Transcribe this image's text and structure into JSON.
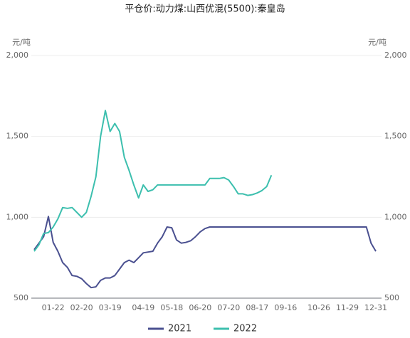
{
  "chart_data": {
    "type": "line",
    "title": "平仓价:动力煤:山西优混(5500):秦皇岛",
    "y_label": "元/吨",
    "y2_label": "元/吨",
    "ylim": [
      500,
      2000
    ],
    "yticks": [
      500,
      {
        "value": 1000,
        "label": "1,000"
      },
      {
        "value": 1500,
        "label": "1,500"
      },
      {
        "value": 2000,
        "label": "2,000"
      }
    ],
    "y2lim": [
      500,
      2000
    ],
    "y2ticks": [
      500,
      {
        "value": 1000,
        "label": "1,000"
      },
      {
        "value": 1500,
        "label": "1,500"
      },
      {
        "value": 2000,
        "label": "2,000"
      }
    ],
    "grid": true,
    "legend": "bottom",
    "categories": [
      null,
      null,
      null,
      null,
      "01-22",
      null,
      null,
      null,
      null,
      null,
      "02-20",
      null,
      null,
      null,
      null,
      null,
      "03-19",
      null,
      null,
      null,
      null,
      null,
      null,
      "04-19",
      null,
      null,
      null,
      null,
      null,
      "05-18",
      null,
      null,
      null,
      null,
      null,
      "06-20",
      null,
      null,
      null,
      null,
      null,
      "07-20",
      null,
      null,
      null,
      null,
      null,
      "08-17",
      null,
      null,
      null,
      null,
      null,
      "09-16",
      null,
      null,
      null,
      null,
      null,
      null,
      "10-26",
      null,
      null,
      null,
      null,
      null,
      "11-29",
      null,
      null,
      null,
      null,
      null,
      "12-31"
    ],
    "series": [
      {
        "name": "2021",
        "color": "#4a5090",
        "values": [
          800,
          840,
          880,
          1005,
          845,
          790,
          720,
          690,
          640,
          635,
          620,
          590,
          565,
          570,
          610,
          625,
          625,
          640,
          680,
          720,
          735,
          720,
          750,
          780,
          785,
          790,
          840,
          880,
          940,
          935,
          860,
          840,
          845,
          855,
          880,
          910,
          930,
          940,
          940,
          940,
          940,
          940,
          940,
          940,
          940,
          940,
          940,
          940,
          940,
          940,
          940,
          940,
          940,
          940,
          940,
          940,
          940,
          940,
          940,
          940,
          940,
          940,
          940,
          940,
          940,
          940,
          940,
          940,
          940,
          940,
          940,
          840,
          790
        ]
      },
      {
        "name": "2022",
        "color": "#3cbfae",
        "values": [
          790,
          830,
          900,
          905,
          940,
          990,
          1060,
          1055,
          1060,
          1030,
          1000,
          1030,
          1130,
          1250,
          1500,
          1660,
          1530,
          1580,
          1530,
          1370,
          1290,
          1200,
          1120,
          1200,
          1160,
          1170,
          1200,
          1200,
          1200,
          1200,
          1200,
          1200,
          1200,
          1200,
          1200,
          1200,
          1200,
          1240,
          1240,
          1240,
          1245,
          1230,
          1190,
          1145,
          1145,
          1135,
          1140,
          1150,
          1165,
          1190,
          1260,
          null,
          null,
          null,
          null,
          null,
          null,
          null,
          null,
          null,
          null,
          null,
          null,
          null,
          null,
          null,
          null,
          null,
          null,
          null,
          null,
          null,
          null
        ]
      }
    ]
  }
}
